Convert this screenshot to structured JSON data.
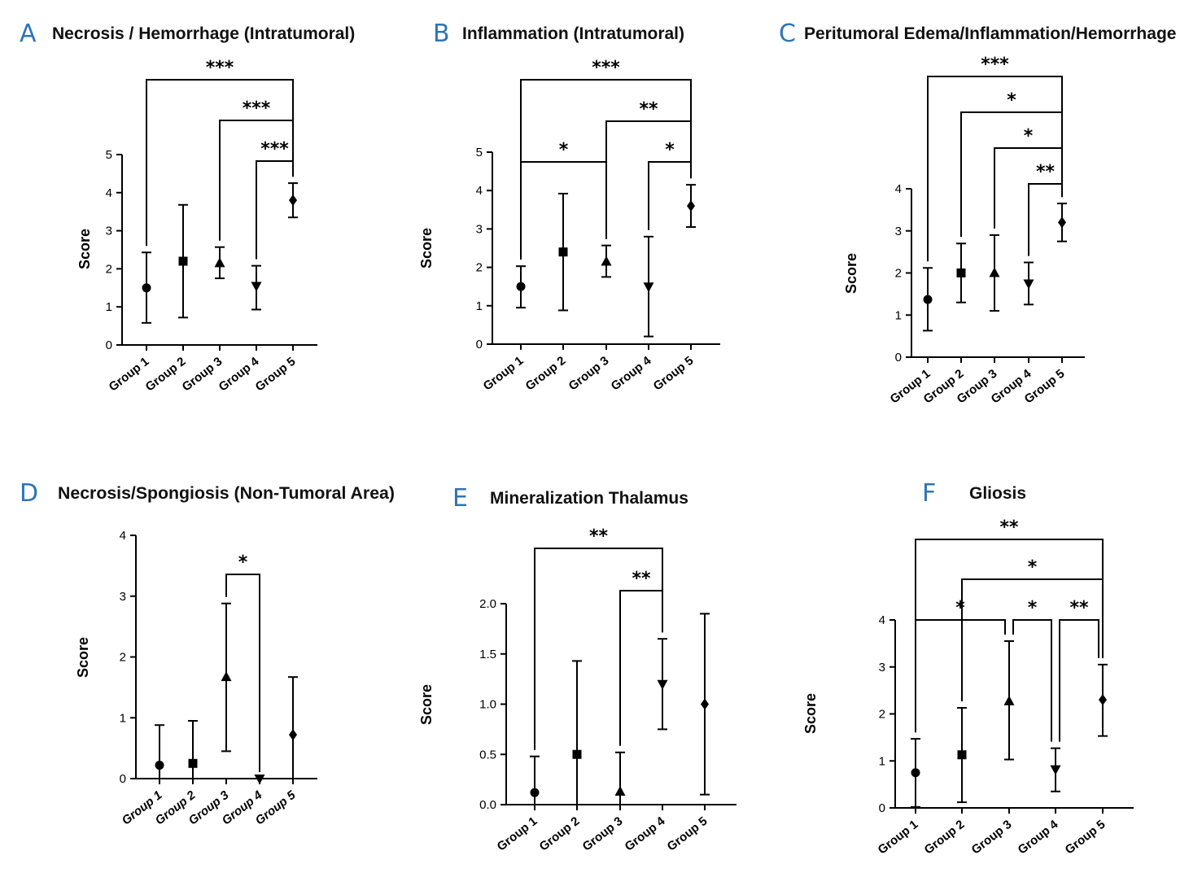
{
  "panels": [
    {
      "id": "A",
      "letter": "A",
      "title": "Necrosis / Hemorrhage (Intratumoral)",
      "type": "scatter",
      "ylabel": "Score",
      "ylim": [
        0,
        5
      ],
      "yticks": [
        "0",
        "1",
        "2",
        "3",
        "4",
        "5"
      ],
      "categories": [
        "Group 1",
        "Group 2",
        "Group 3",
        "Group 4",
        "Group 5"
      ],
      "markers": [
        "circle",
        "square",
        "triangle-up",
        "triangle-down",
        "diamond"
      ],
      "means": [
        1.5,
        2.2,
        2.15,
        1.55,
        3.8
      ],
      "lower": [
        0.58,
        0.72,
        1.75,
        0.93,
        3.35
      ],
      "upper": [
        2.43,
        3.68,
        2.57,
        2.08,
        4.25
      ],
      "comparisons": [
        {
          "from": 1,
          "to": 5,
          "label": "***"
        },
        {
          "from": 3,
          "to": 5,
          "label": "***"
        },
        {
          "from": 4,
          "to": 5,
          "label": "***"
        }
      ]
    },
    {
      "id": "B",
      "letter": "B",
      "title": "Inflammation (Intratumoral)",
      "type": "scatter",
      "ylabel": "Score",
      "ylim": [
        0,
        5
      ],
      "yticks": [
        "0",
        "1",
        "2",
        "3",
        "4",
        "5"
      ],
      "categories": [
        "Group 1",
        "Group 2",
        "Group 3",
        "Group 4",
        "Group 5"
      ],
      "markers": [
        "circle",
        "square",
        "triangle-up",
        "triangle-down",
        "diamond"
      ],
      "means": [
        1.5,
        2.4,
        2.15,
        1.5,
        3.6
      ],
      "lower": [
        0.95,
        0.88,
        1.75,
        0.2,
        3.05
      ],
      "upper": [
        2.03,
        3.92,
        2.57,
        2.8,
        4.15
      ],
      "comparisons": [
        {
          "from": 1,
          "to": 5,
          "label": "***"
        },
        {
          "from": 3,
          "to": 5,
          "label": "**"
        },
        {
          "from": 1,
          "to": 3,
          "label": "*"
        },
        {
          "from": 4,
          "to": 5,
          "label": "*"
        }
      ]
    },
    {
      "id": "C",
      "letter": "C",
      "title": "Peritumoral Edema/Inflammation/Hemorrhage",
      "type": "scatter",
      "ylabel": "Score",
      "ylim": [
        0,
        4
      ],
      "yticks": [
        "0",
        "1",
        "2",
        "3",
        "4"
      ],
      "categories": [
        "Group 1",
        "Group 2",
        "Group 3",
        "Group 4",
        "Group 5"
      ],
      "markers": [
        "circle",
        "square",
        "triangle-up",
        "triangle-down",
        "diamond"
      ],
      "means": [
        1.37,
        2.0,
        2.0,
        1.75,
        3.2
      ],
      "lower": [
        0.63,
        1.3,
        1.1,
        1.25,
        2.75
      ],
      "upper": [
        2.12,
        2.7,
        2.9,
        2.25,
        3.65
      ],
      "comparisons": [
        {
          "from": 1,
          "to": 5,
          "label": "***"
        },
        {
          "from": 2,
          "to": 5,
          "label": "*"
        },
        {
          "from": 3,
          "to": 5,
          "label": "*"
        },
        {
          "from": 4,
          "to": 5,
          "label": "**"
        }
      ]
    },
    {
      "id": "D",
      "letter": "D",
      "title": "Necrosis/Spongiosis (Non-Tumoral Area)",
      "type": "scatter",
      "ylabel": "Score",
      "ylim": [
        0,
        4
      ],
      "yticks": [
        "0",
        "1",
        "2",
        "3",
        "4"
      ],
      "categories": [
        "Group 1",
        "Group 2",
        "Group 3",
        "Group 4",
        "Group 5"
      ],
      "markers": [
        "circle",
        "square",
        "triangle-up",
        "triangle-down",
        "diamond"
      ],
      "means": [
        0.22,
        0.25,
        1.67,
        0.0,
        0.72
      ],
      "lower": [
        0.0,
        0.0,
        0.45,
        0.0,
        0.0
      ],
      "upper": [
        0.88,
        0.95,
        2.88,
        0.0,
        1.67
      ],
      "comparisons": [
        {
          "from": 3,
          "to": 4,
          "label": "*"
        }
      ]
    },
    {
      "id": "E",
      "letter": "E",
      "title": "Mineralization Thalamus",
      "type": "scatter",
      "ylabel": "Score",
      "ylim": [
        0,
        2.0
      ],
      "yticks": [
        "0.0",
        "0.5",
        "1.0",
        "1.5",
        "2.0"
      ],
      "categories": [
        "Group 1",
        "Group 2",
        "Group 3",
        "Group 4",
        "Group 5"
      ],
      "markers": [
        "circle",
        "square",
        "triangle-up",
        "triangle-down",
        "diamond"
      ],
      "means": [
        0.12,
        0.5,
        0.13,
        1.2,
        1.0
      ],
      "lower": [
        0.0,
        0.0,
        0.0,
        0.75,
        0.1
      ],
      "upper": [
        0.48,
        1.43,
        0.52,
        1.65,
        1.9
      ],
      "comparisons": [
        {
          "from": 1,
          "to": 4,
          "label": "**"
        },
        {
          "from": 3,
          "to": 4,
          "label": "**"
        }
      ]
    },
    {
      "id": "F",
      "letter": "F",
      "title": "Gliosis",
      "type": "scatter",
      "ylabel": "Score",
      "ylim": [
        0,
        4
      ],
      "yticks": [
        "0",
        "1",
        "2",
        "3",
        "4"
      ],
      "categories": [
        "Group 1",
        "Group 2",
        "Group 3",
        "Group 4",
        "Group 5"
      ],
      "markers": [
        "circle",
        "square",
        "triangle-up",
        "triangle-down",
        "diamond"
      ],
      "means": [
        0.75,
        1.13,
        2.27,
        0.82,
        2.3
      ],
      "lower": [
        0.02,
        0.12,
        1.03,
        0.35,
        1.53
      ],
      "upper": [
        1.47,
        2.13,
        3.55,
        1.27,
        3.05
      ],
      "comparisons": [
        {
          "from": 1,
          "to": 5,
          "label": "**"
        },
        {
          "from": 2,
          "to": 5,
          "label": "*"
        },
        {
          "from": 1,
          "to": 3,
          "label": "*"
        },
        {
          "from": 3,
          "to": 4,
          "label": "*"
        },
        {
          "from": 4,
          "to": 5,
          "label": "**"
        }
      ]
    }
  ]
}
